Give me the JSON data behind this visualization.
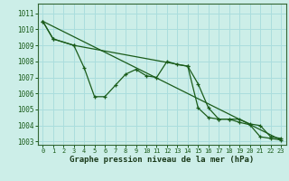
{
  "title": "Graphe pression niveau de la mer (hPa)",
  "bg_color": "#cceee8",
  "grid_color": "#aadddd",
  "line_color": "#1a5c1a",
  "xlim": [
    -0.5,
    23.5
  ],
  "ylim": [
    1002.8,
    1011.6
  ],
  "yticks": [
    1003,
    1004,
    1005,
    1006,
    1007,
    1008,
    1009,
    1010,
    1011
  ],
  "xticks": [
    0,
    1,
    2,
    3,
    4,
    5,
    6,
    7,
    8,
    9,
    10,
    11,
    12,
    13,
    14,
    15,
    16,
    17,
    18,
    19,
    20,
    21,
    22,
    23
  ],
  "series1_x": [
    0,
    1,
    3,
    4,
    5,
    6,
    7,
    8,
    9,
    10,
    11,
    12,
    13,
    14,
    15,
    16,
    17,
    18,
    19,
    20,
    21,
    22,
    23
  ],
  "series1_y": [
    1010.5,
    1009.4,
    1009.0,
    1007.6,
    1005.8,
    1005.8,
    1006.5,
    1007.2,
    1007.5,
    1007.1,
    1007.0,
    1008.0,
    1007.8,
    1007.7,
    1006.6,
    1005.1,
    1004.4,
    1004.4,
    1004.4,
    1004.1,
    1004.0,
    1003.3,
    1003.2
  ],
  "series2_x": [
    0,
    1,
    3,
    14,
    15,
    16,
    17,
    18,
    19,
    20,
    21,
    22,
    23
  ],
  "series2_y": [
    1010.5,
    1009.4,
    1009.0,
    1007.7,
    1005.1,
    1004.5,
    1004.4,
    1004.4,
    1004.2,
    1004.05,
    1003.3,
    1003.2,
    1003.1
  ],
  "trend_x": [
    0,
    23
  ],
  "trend_y": [
    1010.5,
    1003.1
  ],
  "ylabel_fontsize": 5.5,
  "xlabel_fontsize": 6.5,
  "tick_fontsize": 5.0
}
